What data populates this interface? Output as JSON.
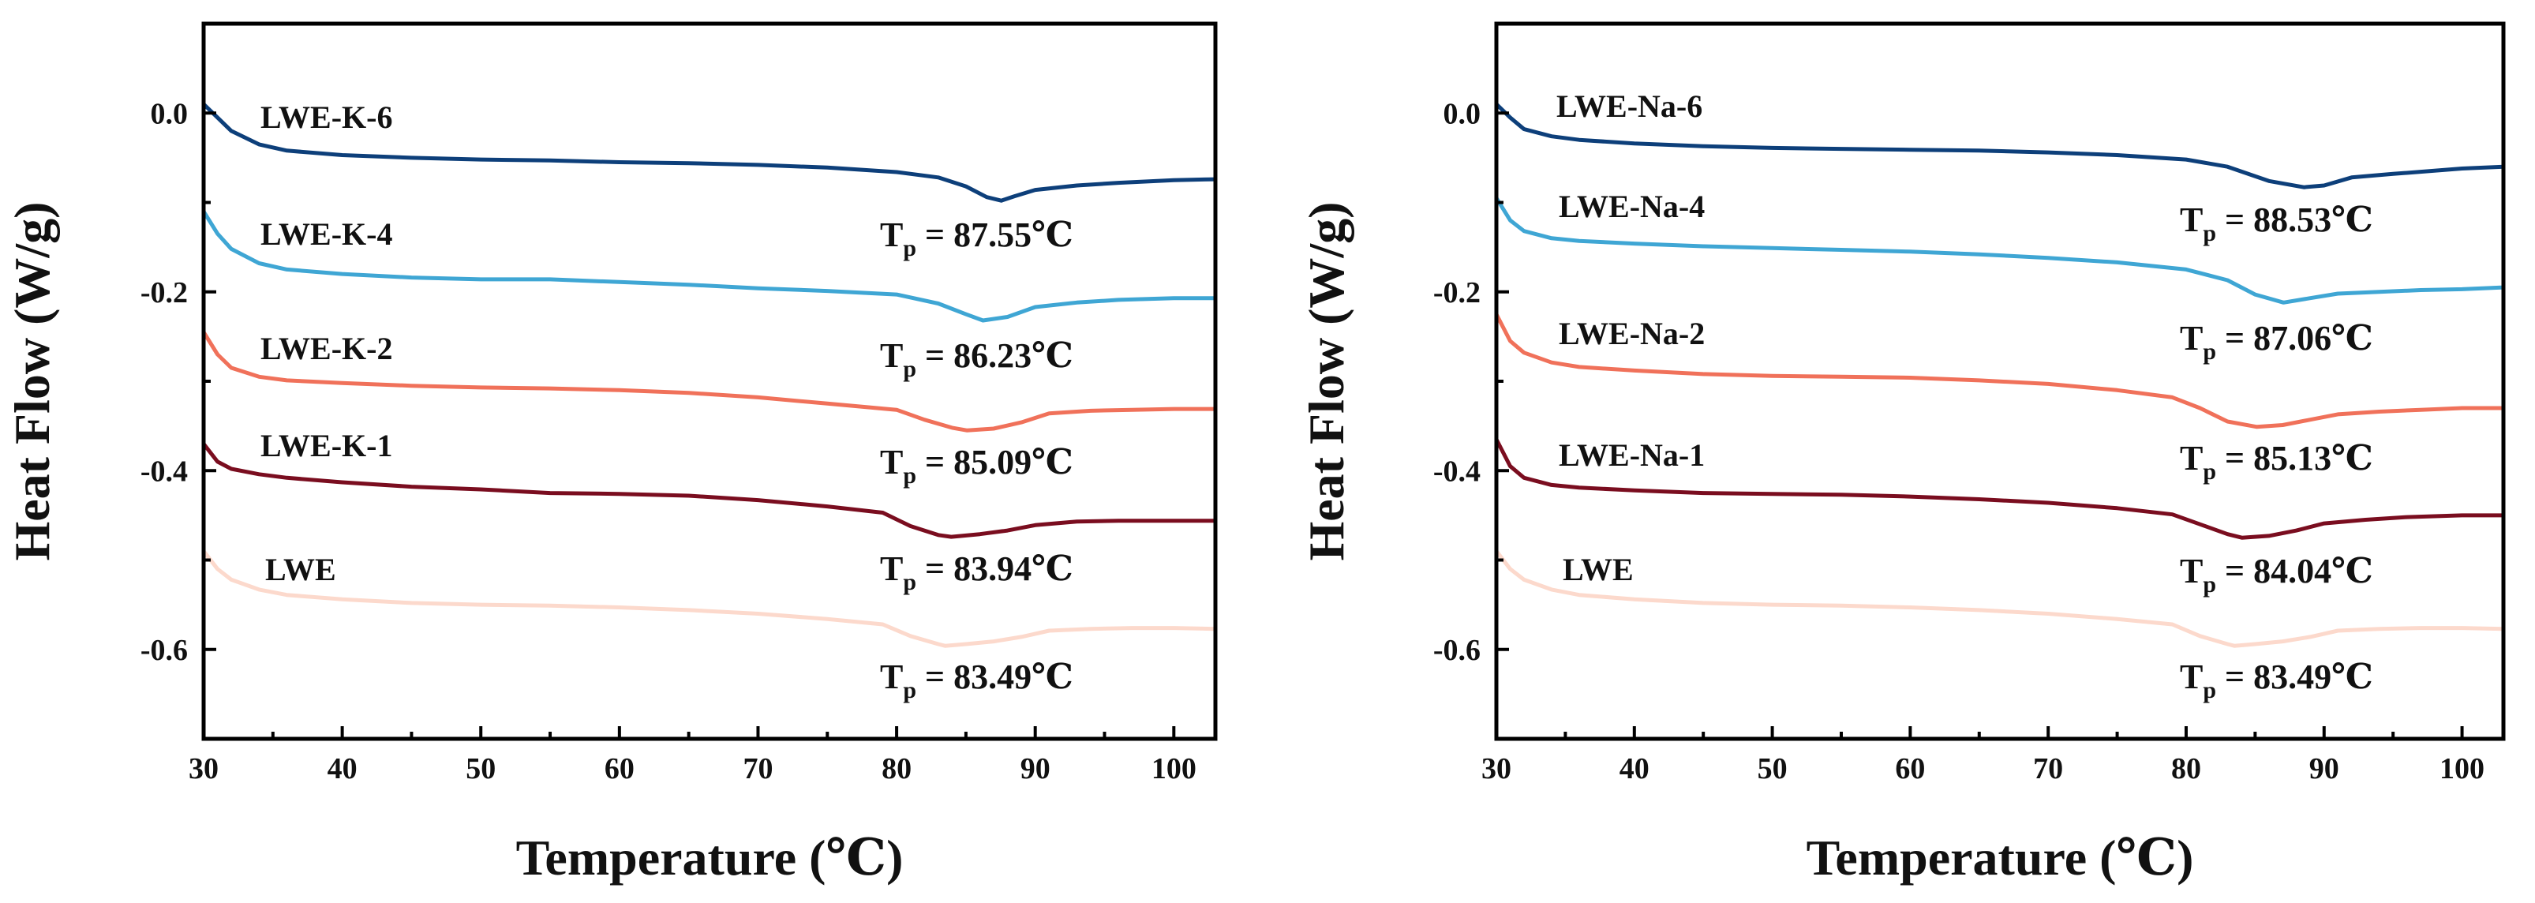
{
  "chart_data": [
    {
      "type": "line",
      "title": "",
      "xlabel": "Temperature (℃)",
      "ylabel": "Heat Flow (W/g)",
      "xlim": [
        30,
        103
      ],
      "ylim": [
        -0.7,
        0.1
      ],
      "xticks": [
        30,
        40,
        50,
        60,
        70,
        80,
        90,
        100
      ],
      "yticks": [
        0.0,
        -0.2,
        -0.4,
        -0.6
      ],
      "ytick_labels": [
        "0.0",
        "-0.2",
        "-0.4",
        "-0.6"
      ],
      "series": [
        {
          "name": "LWE-K-6",
          "color": "#0d3f7a",
          "annotation": "87.55℃",
          "x": [
            30,
            31,
            32,
            34,
            36,
            40,
            45,
            50,
            55,
            60,
            65,
            70,
            75,
            80,
            83,
            85,
            86.5,
            87.55,
            88.5,
            90,
            93,
            96,
            100,
            103
          ],
          "y": [
            0.01,
            -0.005,
            -0.02,
            -0.035,
            -0.042,
            -0.047,
            -0.05,
            -0.052,
            -0.053,
            -0.055,
            -0.056,
            -0.058,
            -0.061,
            -0.066,
            -0.072,
            -0.082,
            -0.094,
            -0.098,
            -0.093,
            -0.086,
            -0.081,
            -0.078,
            -0.075,
            -0.074
          ]
        },
        {
          "name": "LWE-K-4",
          "color": "#3fa6d4",
          "annotation": "86.23℃",
          "x": [
            30,
            31,
            32,
            34,
            36,
            40,
            45,
            50,
            55,
            60,
            65,
            70,
            75,
            80,
            83,
            85,
            86.23,
            88,
            90,
            93,
            96,
            100,
            103
          ],
          "y": [
            -0.11,
            -0.135,
            -0.152,
            -0.168,
            -0.175,
            -0.18,
            -0.184,
            -0.186,
            -0.186,
            -0.189,
            -0.192,
            -0.196,
            -0.199,
            -0.203,
            -0.213,
            -0.225,
            -0.232,
            -0.228,
            -0.217,
            -0.212,
            -0.209,
            -0.207,
            -0.207
          ]
        },
        {
          "name": "LWE-K-2",
          "color": "#f0715a",
          "annotation": "85.09℃",
          "x": [
            30,
            31,
            32,
            34,
            36,
            40,
            45,
            50,
            55,
            60,
            65,
            70,
            75,
            80,
            82,
            84,
            85.09,
            87,
            89,
            91,
            94,
            97,
            100,
            103
          ],
          "y": [
            -0.245,
            -0.27,
            -0.285,
            -0.295,
            -0.299,
            -0.302,
            -0.305,
            -0.307,
            -0.308,
            -0.31,
            -0.313,
            -0.318,
            -0.325,
            -0.332,
            -0.343,
            -0.352,
            -0.355,
            -0.353,
            -0.346,
            -0.336,
            -0.333,
            -0.332,
            -0.331,
            -0.331
          ]
        },
        {
          "name": "LWE-K-1",
          "color": "#7a0d1f",
          "annotation": "83.94℃",
          "x": [
            30,
            31,
            32,
            34,
            36,
            40,
            45,
            50,
            55,
            60,
            65,
            70,
            75,
            79,
            81,
            83,
            83.94,
            86,
            88,
            90,
            93,
            96,
            100,
            103
          ],
          "y": [
            -0.37,
            -0.39,
            -0.398,
            -0.404,
            -0.408,
            -0.413,
            -0.418,
            -0.421,
            -0.425,
            -0.426,
            -0.428,
            -0.433,
            -0.44,
            -0.447,
            -0.462,
            -0.472,
            -0.474,
            -0.471,
            -0.467,
            -0.461,
            -0.457,
            -0.456,
            -0.456,
            -0.456
          ]
        },
        {
          "name": "LWE",
          "color": "#fcd9cc",
          "annotation": "83.49℃",
          "x": [
            30,
            31,
            32,
            34,
            36,
            40,
            45,
            50,
            55,
            60,
            65,
            70,
            75,
            79,
            81,
            83,
            83.49,
            85,
            87,
            89,
            91,
            94,
            97,
            100,
            103
          ],
          "y": [
            -0.49,
            -0.51,
            -0.522,
            -0.533,
            -0.539,
            -0.544,
            -0.548,
            -0.55,
            -0.551,
            -0.553,
            -0.556,
            -0.56,
            -0.566,
            -0.572,
            -0.585,
            -0.594,
            -0.596,
            -0.594,
            -0.591,
            -0.586,
            -0.579,
            -0.577,
            -0.576,
            -0.576,
            -0.577
          ]
        }
      ]
    },
    {
      "type": "line",
      "title": "",
      "xlabel": "Temperature (℃)",
      "ylabel": "Heat Flow (W/g)",
      "xlim": [
        30,
        103
      ],
      "ylim": [
        -0.7,
        0.1
      ],
      "xticks": [
        30,
        40,
        50,
        60,
        70,
        80,
        90,
        100
      ],
      "yticks": [
        0.0,
        -0.2,
        -0.4,
        -0.6
      ],
      "ytick_labels": [
        "0.0",
        "-0.2",
        "-0.4",
        "-0.6"
      ],
      "series": [
        {
          "name": "LWE-Na-6",
          "color": "#0d3f7a",
          "annotation": "88.53℃",
          "x": [
            30,
            31,
            32,
            34,
            36,
            40,
            45,
            50,
            55,
            60,
            65,
            70,
            75,
            80,
            83,
            86,
            88.53,
            90,
            92,
            95,
            100,
            103
          ],
          "y": [
            0.01,
            -0.005,
            -0.018,
            -0.026,
            -0.03,
            -0.034,
            -0.037,
            -0.039,
            -0.04,
            -0.041,
            -0.042,
            -0.044,
            -0.047,
            -0.052,
            -0.06,
            -0.076,
            -0.083,
            -0.081,
            -0.072,
            -0.068,
            -0.062,
            -0.06
          ]
        },
        {
          "name": "LWE-Na-4",
          "color": "#3fa6d4",
          "annotation": "87.06℃",
          "x": [
            30,
            31,
            32,
            34,
            36,
            40,
            45,
            50,
            55,
            60,
            65,
            70,
            75,
            80,
            83,
            85,
            87.06,
            89,
            91,
            94,
            97,
            100,
            103
          ],
          "y": [
            -0.095,
            -0.12,
            -0.132,
            -0.14,
            -0.143,
            -0.146,
            -0.149,
            -0.151,
            -0.153,
            -0.155,
            -0.158,
            -0.162,
            -0.167,
            -0.175,
            -0.187,
            -0.203,
            -0.212,
            -0.207,
            -0.202,
            -0.2,
            -0.198,
            -0.197,
            -0.195
          ]
        },
        {
          "name": "LWE-Na-2",
          "color": "#f0715a",
          "annotation": "85.13℃",
          "x": [
            30,
            31,
            32,
            34,
            36,
            40,
            45,
            50,
            55,
            60,
            65,
            70,
            75,
            79,
            81,
            83,
            85.13,
            87,
            89,
            91,
            94,
            97,
            100,
            103
          ],
          "y": [
            -0.225,
            -0.255,
            -0.268,
            -0.279,
            -0.284,
            -0.288,
            -0.292,
            -0.294,
            -0.295,
            -0.296,
            -0.299,
            -0.303,
            -0.31,
            -0.318,
            -0.33,
            -0.345,
            -0.351,
            -0.349,
            -0.343,
            -0.337,
            -0.334,
            -0.332,
            -0.33,
            -0.33
          ]
        },
        {
          "name": "LWE-Na-1",
          "color": "#7a0d1f",
          "annotation": "84.04℃",
          "x": [
            30,
            31,
            32,
            34,
            36,
            40,
            45,
            50,
            55,
            60,
            65,
            70,
            75,
            79,
            81,
            83,
            84.04,
            86,
            88,
            90,
            93,
            96,
            100,
            103
          ],
          "y": [
            -0.365,
            -0.395,
            -0.408,
            -0.416,
            -0.419,
            -0.422,
            -0.425,
            -0.426,
            -0.427,
            -0.429,
            -0.432,
            -0.436,
            -0.442,
            -0.449,
            -0.46,
            -0.471,
            -0.475,
            -0.473,
            -0.467,
            -0.459,
            -0.455,
            -0.452,
            -0.45,
            -0.45
          ]
        },
        {
          "name": "LWE",
          "color": "#fcd9cc",
          "annotation": "83.49℃",
          "x": [
            30,
            31,
            32,
            34,
            36,
            40,
            45,
            50,
            55,
            60,
            65,
            70,
            75,
            79,
            81,
            83,
            83.49,
            85,
            87,
            89,
            91,
            94,
            97,
            100,
            103
          ],
          "y": [
            -0.49,
            -0.51,
            -0.522,
            -0.533,
            -0.539,
            -0.544,
            -0.548,
            -0.55,
            -0.551,
            -0.553,
            -0.556,
            -0.56,
            -0.566,
            -0.572,
            -0.585,
            -0.594,
            -0.596,
            -0.594,
            -0.591,
            -0.586,
            -0.579,
            -0.577,
            -0.576,
            -0.576,
            -0.577
          ]
        }
      ]
    }
  ],
  "annotation_prefix": "T",
  "annotation_subscript": "p",
  "annotation_equals": " = "
}
